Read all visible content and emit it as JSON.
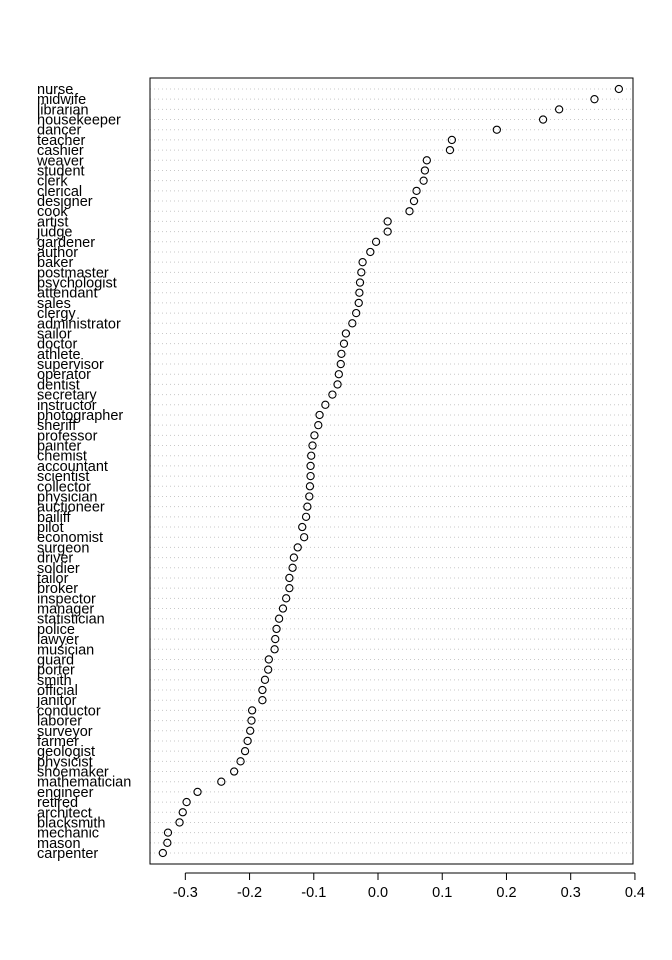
{
  "chart_data": {
    "type": "scatter",
    "title": "",
    "xlabel": "",
    "ylabel": "",
    "xlim": [
      -0.355,
      0.397
    ],
    "x_ticks": [
      -0.3,
      -0.2,
      -0.1,
      0.0,
      0.1,
      0.2,
      0.3,
      0.4
    ],
    "x_tick_labels": [
      "-0.3",
      "-0.2",
      "-0.1",
      "0.0",
      "0.1",
      "0.2",
      "0.3",
      "0.4"
    ],
    "grid": "horizontal dotted",
    "categories": [
      "nurse",
      "midwife",
      "librarian",
      "housekeeper",
      "dancer",
      "teacher",
      "cashier",
      "weaver",
      "student",
      "clerk",
      "clerical",
      "designer",
      "cook",
      "artist",
      "judge",
      "gardener",
      "author",
      "baker",
      "postmaster",
      "psychologist",
      "attendant",
      "sales",
      "clergy",
      "administrator",
      "sailor",
      "doctor",
      "athlete",
      "supervisor",
      "operator",
      "dentist",
      "secretary",
      "instructor",
      "photographer",
      "sheriff",
      "professor",
      "painter",
      "chemist",
      "accountant",
      "scientist",
      "collector",
      "physician",
      "auctioneer",
      "bailiff",
      "pilot",
      "economist",
      "surgeon",
      "driver",
      "soldier",
      "tailor",
      "broker",
      "inspector",
      "manager",
      "statistician",
      "police",
      "lawyer",
      "musician",
      "guard",
      "porter",
      "smith",
      "official",
      "janitor",
      "conductor",
      "laborer",
      "surveyor",
      "farmer",
      "geologist",
      "physicist",
      "shoemaker",
      "mathematician",
      "engineer",
      "retired",
      "architect",
      "blacksmith",
      "mechanic",
      "mason",
      "carpenter"
    ],
    "values": [
      0.375,
      0.337,
      0.282,
      0.257,
      0.185,
      0.115,
      0.112,
      0.076,
      0.073,
      0.071,
      0.06,
      0.056,
      0.049,
      0.015,
      0.015,
      -0.003,
      -0.012,
      -0.024,
      -0.026,
      -0.028,
      -0.029,
      -0.03,
      -0.034,
      -0.04,
      -0.05,
      -0.053,
      -0.057,
      -0.058,
      -0.061,
      -0.063,
      -0.071,
      -0.082,
      -0.091,
      -0.093,
      -0.099,
      -0.102,
      -0.104,
      -0.105,
      -0.105,
      -0.106,
      -0.107,
      -0.11,
      -0.112,
      -0.118,
      -0.115,
      -0.125,
      -0.131,
      -0.133,
      -0.138,
      -0.138,
      -0.143,
      -0.148,
      -0.154,
      -0.158,
      -0.16,
      -0.161,
      -0.17,
      -0.171,
      -0.176,
      -0.18,
      -0.18,
      -0.196,
      -0.197,
      -0.199,
      -0.203,
      -0.207,
      -0.214,
      -0.224,
      -0.244,
      -0.281,
      -0.298,
      -0.304,
      -0.309,
      -0.327,
      -0.328,
      -0.335
    ]
  }
}
